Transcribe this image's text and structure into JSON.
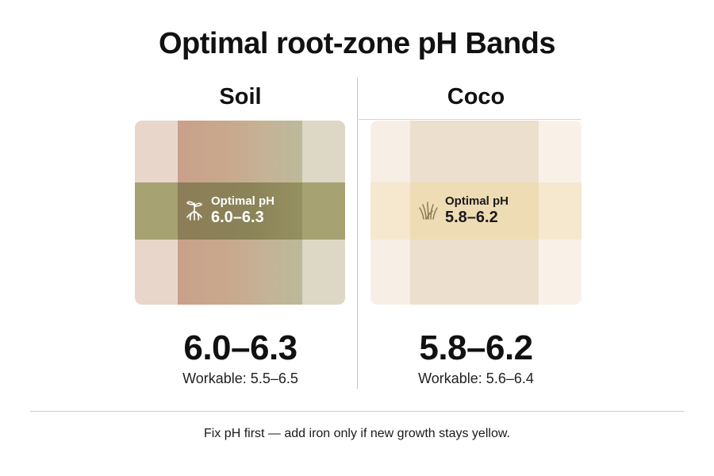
{
  "title": "Optimal root-zone pH Bands",
  "columns": [
    {
      "heading": "Soil",
      "badge_label": "Optimal pH",
      "badge_range": "6.0–6.3",
      "icon": "sprout-roots-icon",
      "optimal_range": "6.0–6.3",
      "workable": "Workable: 5.5–6.5",
      "colors": {
        "optimal_band": "#a7a272",
        "panel": "#e8d6cb"
      }
    },
    {
      "heading": "Coco",
      "badge_label": "Optimal pH",
      "badge_range": "5.8–6.2",
      "icon": "coco-fiber-icon",
      "optimal_range": "5.8–6.2",
      "workable": "Workable: 5.6–6.4",
      "colors": {
        "optimal_band": "#eedcb4",
        "panel": "#f7efe6"
      }
    }
  ],
  "footer_note": "Fix pH first — add iron only if new growth stays yellow."
}
